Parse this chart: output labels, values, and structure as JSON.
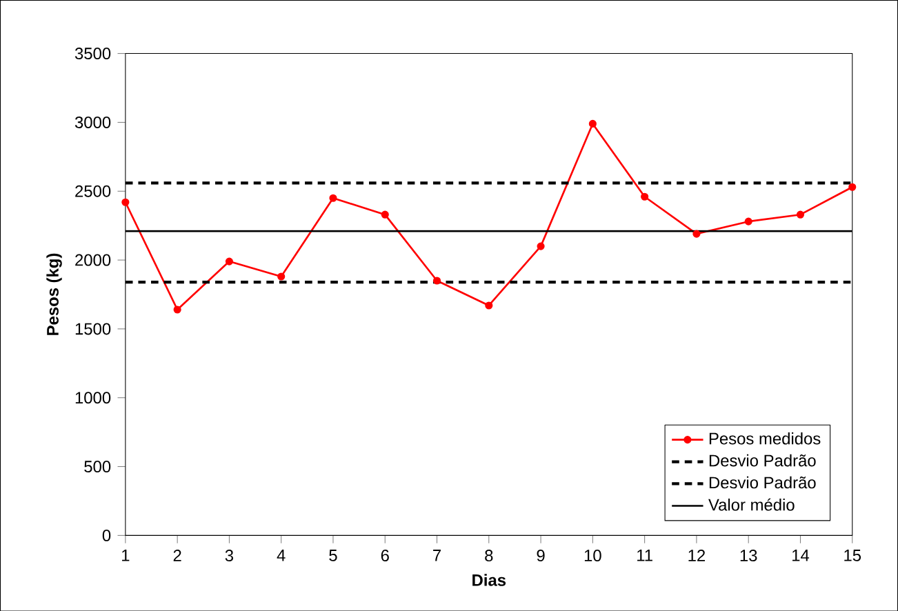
{
  "chart_data": {
    "type": "line",
    "xlabel": "Dias",
    "ylabel": "Pesos (kg)",
    "xlim": [
      1,
      15
    ],
    "xticks": [
      1,
      2,
      3,
      4,
      5,
      6,
      7,
      8,
      9,
      10,
      11,
      12,
      13,
      14,
      15
    ],
    "ylim": [
      0,
      3500
    ],
    "yticks": [
      0,
      500,
      1000,
      1500,
      2000,
      2500,
      3000,
      3500
    ],
    "grid": false,
    "legend": "bottom right",
    "series": [
      {
        "name": "Pesos medidos",
        "color": "#ff0000",
        "marker": "circle",
        "line_style": "solid",
        "x": [
          1,
          2,
          3,
          4,
          5,
          6,
          7,
          8,
          9,
          10,
          11,
          12,
          13,
          14,
          15
        ],
        "values": [
          2420,
          1640,
          1990,
          1880,
          2450,
          2330,
          1850,
          1670,
          2100,
          2990,
          2460,
          2190,
          2280,
          2330,
          2530
        ]
      },
      {
        "name": "Desvio Padrão",
        "color": "#000000",
        "marker": "none",
        "line_style": "dashed",
        "x": [
          1,
          15
        ],
        "values": [
          2560,
          2560
        ]
      },
      {
        "name": "Desvio Padrão",
        "color": "#000000",
        "marker": "none",
        "line_style": "dashed",
        "x": [
          1,
          15
        ],
        "values": [
          1840,
          1840
        ]
      },
      {
        "name": "Valor médio",
        "color": "#000000",
        "marker": "none",
        "line_style": "solid",
        "x": [
          1,
          15
        ],
        "values": [
          2210,
          2210
        ]
      }
    ]
  }
}
